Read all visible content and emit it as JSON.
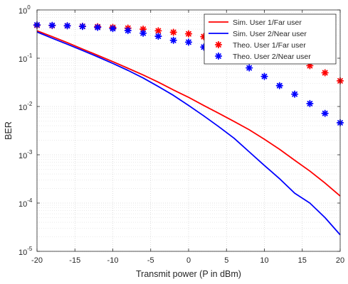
{
  "chart_data": {
    "type": "line",
    "title": "",
    "xlabel": "Transmit power (P in dBm)",
    "ylabel": "BER",
    "xlim": [
      -20,
      20
    ],
    "ylim": [
      1e-05,
      1
    ],
    "yscale": "log",
    "grid": "major and minor (dotted)",
    "legend_position": "top-right",
    "x_ticks": [
      -20,
      -15,
      -10,
      -5,
      0,
      5,
      10,
      15,
      20
    ],
    "x_tick_labels": [
      "-20",
      "-15",
      "-10",
      "-5",
      "0",
      "5",
      "10",
      "15",
      "20"
    ],
    "y_ticks": [
      1e-05,
      0.0001,
      0.001,
      0.01,
      0.1,
      1
    ],
    "y_tick_labels": [
      {
        "base": "10",
        "exp": "-5"
      },
      {
        "base": "10",
        "exp": "-4"
      },
      {
        "base": "10",
        "exp": "-3"
      },
      {
        "base": "10",
        "exp": "-2"
      },
      {
        "base": "10",
        "exp": "-1"
      },
      {
        "base": "10",
        "exp": "0"
      }
    ],
    "series": [
      {
        "name": "Sim. User 1/Far user",
        "style": "line",
        "color": "#ff0000",
        "x": [
          -20,
          -18,
          -16,
          -14,
          -12,
          -10,
          -8,
          -6,
          -4,
          -2,
          0,
          2,
          4,
          6,
          8,
          10,
          12,
          14,
          16,
          18,
          20
        ],
        "y": [
          0.37,
          0.28,
          0.21,
          0.155,
          0.115,
          0.085,
          0.062,
          0.045,
          0.032,
          0.022,
          0.0155,
          0.0105,
          0.0072,
          0.0049,
          0.0033,
          0.0021,
          0.0013,
          0.00077,
          0.00046,
          0.00026,
          0.00014
        ]
      },
      {
        "name": "Sim. User 2/Near user",
        "style": "line",
        "color": "#0000ff",
        "x": [
          -20,
          -18,
          -16,
          -14,
          -12,
          -10,
          -8,
          -6,
          -4,
          -2,
          0,
          2,
          4,
          6,
          8,
          10,
          12,
          14,
          16,
          18,
          20
        ],
        "y": [
          0.35,
          0.26,
          0.195,
          0.145,
          0.107,
          0.078,
          0.056,
          0.039,
          0.026,
          0.017,
          0.0105,
          0.0064,
          0.0038,
          0.0022,
          0.00115,
          0.0006,
          0.00032,
          0.00016,
          0.0001,
          5e-05,
          2.2e-05
        ]
      },
      {
        "name": "Theo. User 1/Far user",
        "style": "marker",
        "marker": "*",
        "color": "#ff0000",
        "x": [
          -20,
          -18,
          -16,
          -14,
          -12,
          -10,
          -8,
          -6,
          -4,
          -2,
          0,
          2,
          4,
          6,
          8,
          10,
          12,
          14,
          16,
          18,
          20
        ],
        "y": [
          0.48,
          0.475,
          0.47,
          0.46,
          0.45,
          0.435,
          0.42,
          0.4,
          0.37,
          0.345,
          0.32,
          0.28,
          0.24,
          0.2,
          0.165,
          0.14,
          0.115,
          0.09,
          0.07,
          0.05,
          0.034
        ]
      },
      {
        "name": "Theo. User 2/Near user",
        "style": "marker",
        "marker": "*",
        "color": "#0000ff",
        "x": [
          -20,
          -18,
          -16,
          -14,
          -12,
          -10,
          -8,
          -6,
          -4,
          -2,
          0,
          2,
          4,
          6,
          8,
          10,
          12,
          14,
          16,
          18,
          20
        ],
        "y": [
          0.49,
          0.48,
          0.47,
          0.455,
          0.435,
          0.41,
          0.375,
          0.33,
          0.285,
          0.235,
          0.215,
          0.17,
          0.13,
          0.095,
          0.063,
          0.042,
          0.027,
          0.018,
          0.0115,
          0.0072,
          0.0046
        ]
      }
    ]
  }
}
